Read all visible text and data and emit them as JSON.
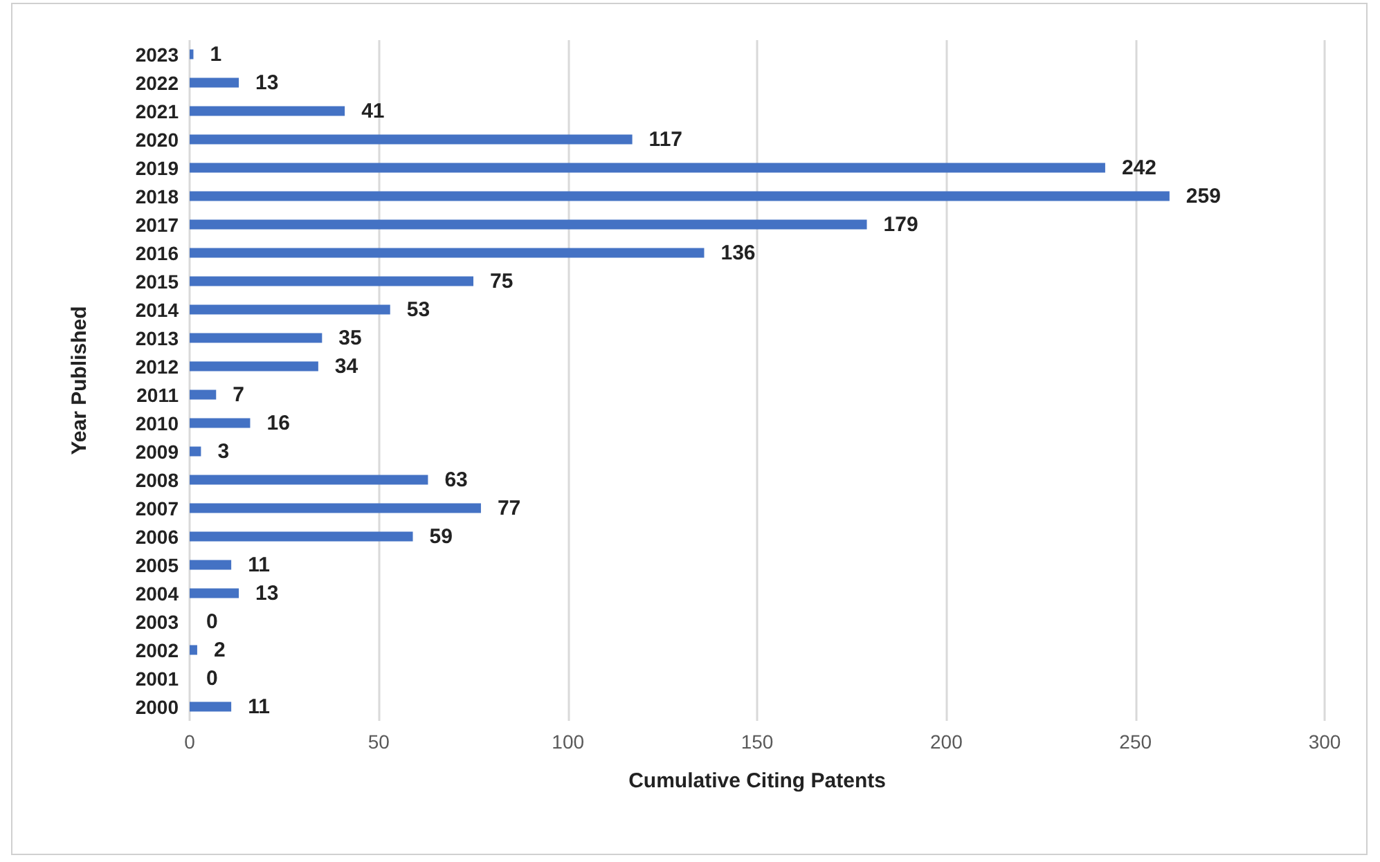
{
  "chart_data": {
    "type": "bar",
    "orientation": "horizontal",
    "xlabel": "Cumulative Citing Patents",
    "ylabel": "Year Published",
    "categories": [
      "2023",
      "2022",
      "2021",
      "2020",
      "2019",
      "2018",
      "2017",
      "2016",
      "2015",
      "2014",
      "2013",
      "2012",
      "2011",
      "2010",
      "2009",
      "2008",
      "2007",
      "2006",
      "2005",
      "2004",
      "2003",
      "2002",
      "2001",
      "2000"
    ],
    "values": [
      1,
      13,
      41,
      117,
      242,
      259,
      179,
      136,
      75,
      53,
      35,
      34,
      7,
      16,
      3,
      63,
      77,
      59,
      11,
      13,
      0,
      2,
      0,
      11
    ],
    "color": "#4472c4",
    "xlim": [
      0,
      300
    ],
    "xticks": [
      0,
      50,
      100,
      150,
      200,
      250,
      300
    ],
    "grid": "x",
    "data_labels": true
  }
}
